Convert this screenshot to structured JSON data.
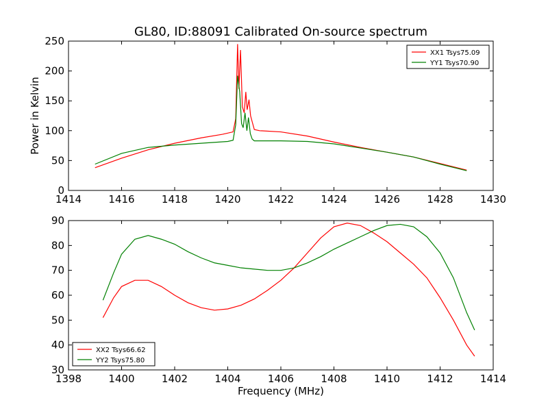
{
  "figure": {
    "title": "GL80, ID:88091 Calibrated On-source spectrum",
    "ylabel": "Power in Kelvin",
    "xlabel": "Frequency (MHz)"
  },
  "chart_data": [
    {
      "type": "line",
      "ylabel": "Power in Kelvin",
      "xlim": [
        1414,
        1430
      ],
      "ylim": [
        0,
        250
      ],
      "xticks": [
        1414,
        1416,
        1418,
        1420,
        1422,
        1424,
        1426,
        1428,
        1430
      ],
      "yticks": [
        0,
        50,
        100,
        150,
        200,
        250
      ],
      "legend": "upper right",
      "series": [
        {
          "name": "XX1 Tsys75.09",
          "color": "#ff0000",
          "points": [
            [
              1415.0,
              38
            ],
            [
              1416.0,
              54
            ],
            [
              1417.0,
              68
            ],
            [
              1418.0,
              79
            ],
            [
              1419.0,
              88
            ],
            [
              1419.8,
              94
            ],
            [
              1420.2,
              98
            ],
            [
              1420.3,
              120
            ],
            [
              1420.37,
              245
            ],
            [
              1420.42,
              170
            ],
            [
              1420.48,
              235
            ],
            [
              1420.55,
              140
            ],
            [
              1420.62,
              130
            ],
            [
              1420.68,
              165
            ],
            [
              1420.73,
              135
            ],
            [
              1420.8,
              152
            ],
            [
              1420.86,
              125
            ],
            [
              1420.92,
              115
            ],
            [
              1421.0,
              102
            ],
            [
              1421.2,
              100
            ],
            [
              1422.0,
              98
            ],
            [
              1423.0,
              91
            ],
            [
              1424.0,
              81
            ],
            [
              1425.0,
              72
            ],
            [
              1426.0,
              64
            ],
            [
              1427.0,
              56
            ],
            [
              1428.0,
              45
            ],
            [
              1429.0,
              34
            ]
          ]
        },
        {
          "name": "YY1 Tsys70.90",
          "color": "#008000",
          "points": [
            [
              1415.0,
              44
            ],
            [
              1416.0,
              62
            ],
            [
              1417.0,
              72
            ],
            [
              1418.0,
              76
            ],
            [
              1419.0,
              79
            ],
            [
              1420.0,
              82
            ],
            [
              1420.2,
              84
            ],
            [
              1420.3,
              110
            ],
            [
              1420.37,
              192
            ],
            [
              1420.45,
              165
            ],
            [
              1420.52,
              112
            ],
            [
              1420.58,
              105
            ],
            [
              1420.65,
              130
            ],
            [
              1420.72,
              100
            ],
            [
              1420.78,
              122
            ],
            [
              1420.85,
              95
            ],
            [
              1420.92,
              86
            ],
            [
              1421.0,
              83
            ],
            [
              1422.0,
              83
            ],
            [
              1423.0,
              82
            ],
            [
              1424.0,
              78
            ],
            [
              1425.0,
              71
            ],
            [
              1426.0,
              64
            ],
            [
              1427.0,
              56
            ],
            [
              1428.0,
              44
            ],
            [
              1429.0,
              33
            ]
          ]
        }
      ]
    },
    {
      "type": "line",
      "xlabel": "Frequency (MHz)",
      "xlim": [
        1398,
        1414
      ],
      "ylim": [
        30,
        90
      ],
      "xticks": [
        1398,
        1400,
        1402,
        1404,
        1406,
        1408,
        1410,
        1412,
        1414
      ],
      "yticks": [
        30,
        40,
        50,
        60,
        70,
        80,
        90
      ],
      "legend": "lower left",
      "series": [
        {
          "name": "XX2 Tsys66.62",
          "color": "#ff0000",
          "points": [
            [
              1399.3,
              51
            ],
            [
              1399.7,
              59
            ],
            [
              1400.0,
              63.5
            ],
            [
              1400.5,
              66
            ],
            [
              1401.0,
              66
            ],
            [
              1401.5,
              63.5
            ],
            [
              1402.0,
              60
            ],
            [
              1402.5,
              57
            ],
            [
              1403.0,
              55
            ],
            [
              1403.5,
              54
            ],
            [
              1404.0,
              54.5
            ],
            [
              1404.5,
              56
            ],
            [
              1405.0,
              58.5
            ],
            [
              1405.5,
              62
            ],
            [
              1406.0,
              66
            ],
            [
              1406.5,
              71
            ],
            [
              1407.0,
              77
            ],
            [
              1407.5,
              83
            ],
            [
              1408.0,
              87.5
            ],
            [
              1408.5,
              89
            ],
            [
              1409.0,
              88
            ],
            [
              1409.5,
              85
            ],
            [
              1410.0,
              81.5
            ],
            [
              1410.5,
              77
            ],
            [
              1411.0,
              72.5
            ],
            [
              1411.5,
              67
            ],
            [
              1412.0,
              59
            ],
            [
              1412.5,
              50
            ],
            [
              1413.0,
              40
            ],
            [
              1413.3,
              35.5
            ]
          ]
        },
        {
          "name": "YY2 Tsys75.80",
          "color": "#008000",
          "points": [
            [
              1399.3,
              58
            ],
            [
              1399.7,
              69
            ],
            [
              1400.0,
              76.5
            ],
            [
              1400.5,
              82.5
            ],
            [
              1401.0,
              84
            ],
            [
              1401.5,
              82.5
            ],
            [
              1402.0,
              80.5
            ],
            [
              1402.5,
              77.5
            ],
            [
              1403.0,
              75
            ],
            [
              1403.5,
              73
            ],
            [
              1404.0,
              72
            ],
            [
              1404.5,
              71
            ],
            [
              1405.0,
              70.5
            ],
            [
              1405.5,
              70
            ],
            [
              1406.0,
              70
            ],
            [
              1406.5,
              71
            ],
            [
              1407.0,
              73
            ],
            [
              1407.5,
              75.5
            ],
            [
              1408.0,
              78.5
            ],
            [
              1408.5,
              81
            ],
            [
              1409.0,
              83.5
            ],
            [
              1409.5,
              86
            ],
            [
              1410.0,
              88
            ],
            [
              1410.5,
              88.5
            ],
            [
              1411.0,
              87.5
            ],
            [
              1411.5,
              83.5
            ],
            [
              1412.0,
              77
            ],
            [
              1412.5,
              67
            ],
            [
              1413.0,
              53
            ],
            [
              1413.3,
              46
            ]
          ]
        }
      ]
    }
  ]
}
